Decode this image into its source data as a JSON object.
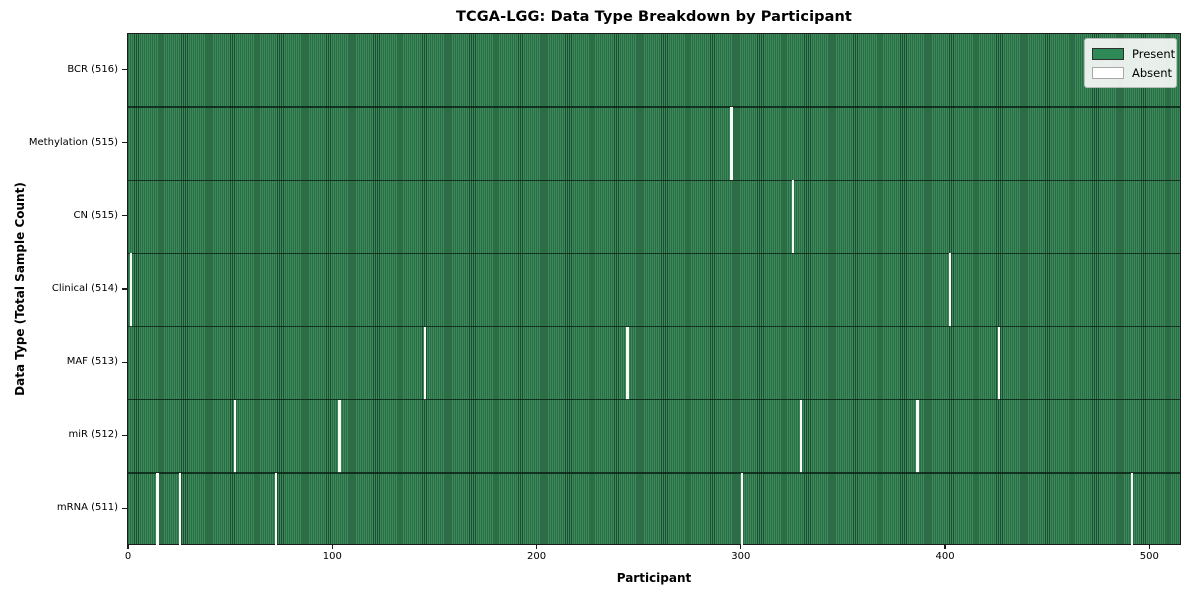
{
  "chart_data": {
    "type": "heatmap",
    "title": "TCGA-LGG: Data Type Breakdown by Participant",
    "xlabel": "Participant",
    "ylabel": "Data Type (Total Sample Count)",
    "x_ticks": [
      0,
      100,
      200,
      300,
      400,
      500
    ],
    "x_range": [
      -0.5,
      515.5
    ],
    "n_participants": 516,
    "grid": false,
    "legend_position": "upper right",
    "rows": [
      {
        "label": "BCR (516)",
        "total_samples": 516,
        "absent_participants": []
      },
      {
        "label": "Methylation (515)",
        "total_samples": 515,
        "absent_participants": [
          295
        ]
      },
      {
        "label": "CN (515)",
        "total_samples": 515,
        "absent_participants": [
          325
        ]
      },
      {
        "label": "Clinical (514)",
        "total_samples": 514,
        "absent_participants": [
          1,
          402
        ]
      },
      {
        "label": "MAF (513)",
        "total_samples": 513,
        "absent_participants": [
          145,
          244,
          426
        ]
      },
      {
        "label": "miR (512)",
        "total_samples": 512,
        "absent_participants": [
          52,
          103,
          329,
          386
        ]
      },
      {
        "label": "mRNA (511)",
        "total_samples": 511,
        "absent_participants": [
          14,
          25,
          72,
          300,
          491
        ]
      }
    ],
    "legend": [
      {
        "label": "Present",
        "color": "#2e8b57",
        "edge": "#2f2f2f"
      },
      {
        "label": "Absent",
        "color": "#ffffff",
        "edge": "#a8a8a8"
      }
    ],
    "colors": {
      "bar_fill": "#3a8a5a",
      "bar_edge": "#1e4d33",
      "absent": "#fafafa",
      "legend_bg": "rgba(247,250,247,0.92)",
      "text": "#000000"
    }
  }
}
